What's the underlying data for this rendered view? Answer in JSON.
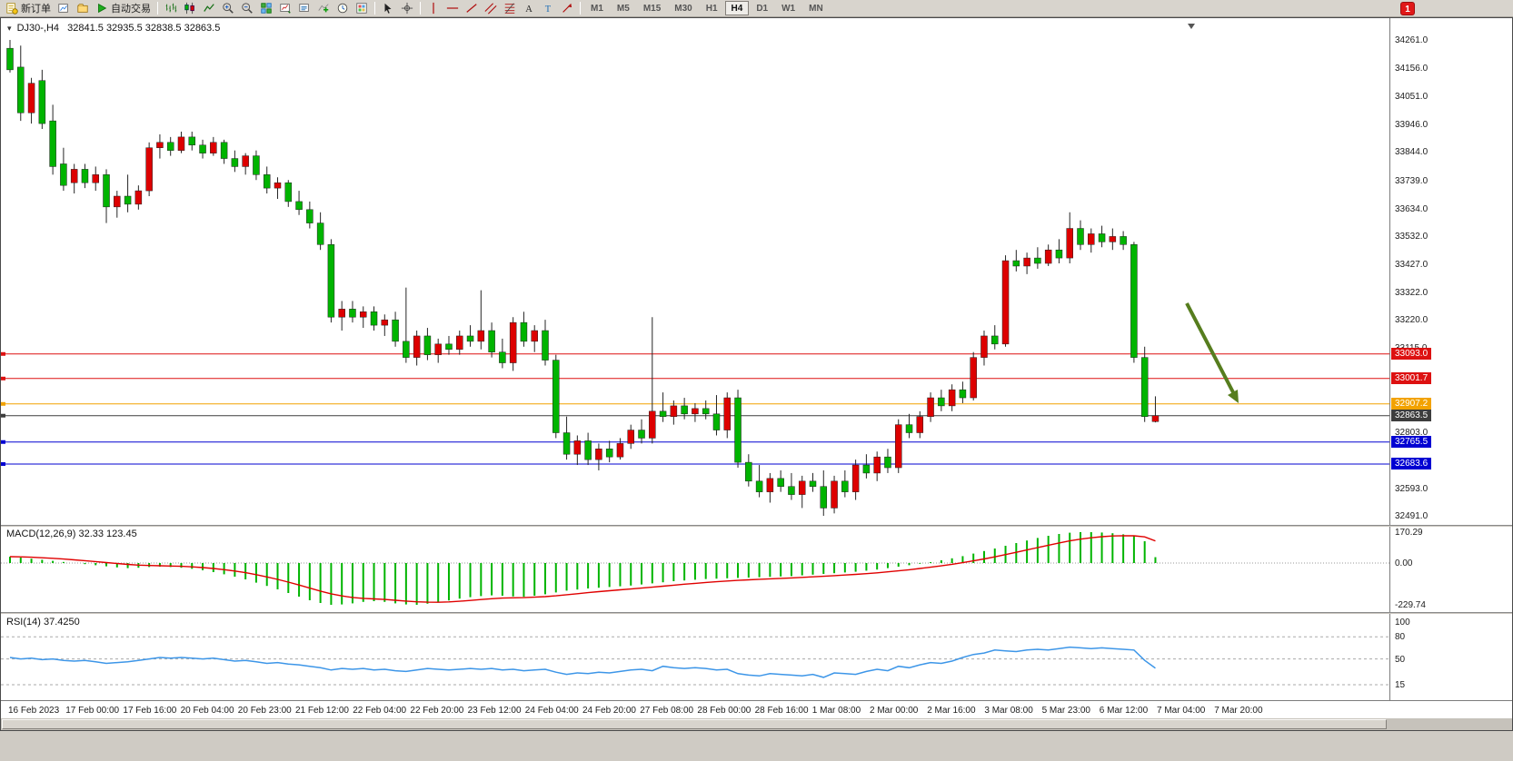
{
  "toolbar": {
    "new_order": "新订单",
    "autotrading": "自动交易",
    "badge": "1",
    "icons": [
      "new-order",
      "new-chart",
      "profiles",
      "autotrading",
      "bars-chart",
      "candlestick-chart",
      "line-chart",
      "zoom-in",
      "zoom-out",
      "tile-windows",
      "chart-window",
      "chart-list",
      "indicators",
      "periods",
      "templates",
      "cursor",
      "crosshair",
      "vertical-line",
      "horizontal-line",
      "trendline",
      "equidistant-channel",
      "fibonacci",
      "text",
      "label",
      "arrows"
    ],
    "timeframes": [
      "M1",
      "M5",
      "M15",
      "M30",
      "H1",
      "H4",
      "D1",
      "W1",
      "MN"
    ],
    "active_timeframe": "H4"
  },
  "chart": {
    "symbol_period": "DJ30-,H4",
    "ohlc_text": "32841.5 32935.5 32838.5 32863.5"
  },
  "chart_data": {
    "type": "candlestick",
    "symbol": "DJ30-",
    "period": "H4",
    "last_candle": {
      "open": 32841.5,
      "high": 32935.5,
      "low": 32838.5,
      "close": 32863.5
    },
    "up_color": "#dd0000",
    "down_color": "#00b400",
    "wick_color": "#262626",
    "ylim": [
      32470,
      34320
    ],
    "price_axis_ticks": [
      "34261.0",
      "34156.0",
      "34051.0",
      "33946.0",
      "33844.0",
      "33739.0",
      "33634.0",
      "33532.0",
      "33427.0",
      "33322.0",
      "33220.0",
      "33115.0",
      "32803.0",
      "32593.0",
      "32491.0"
    ],
    "price_lines": [
      {
        "value": "33093.0",
        "price": 33093.0,
        "color": "#dd1111",
        "kind": "resistance"
      },
      {
        "value": "33001.7",
        "price": 33001.7,
        "color": "#dd1111",
        "kind": "resistance"
      },
      {
        "value": "32907.2",
        "price": 32907.2,
        "color": "#f2a200",
        "kind": "level"
      },
      {
        "value": "32863.5",
        "price": 32863.5,
        "color": "#3d3d3d",
        "kind": "current-price"
      },
      {
        "value": "32765.5",
        "price": 32765.5,
        "color": "#0000d2",
        "kind": "support"
      },
      {
        "value": "32683.6",
        "price": 32683.6,
        "color": "#0000d2",
        "kind": "support"
      }
    ],
    "time_labels": [
      "16 Feb 2023",
      "17 Feb 00:00",
      "17 Feb 16:00",
      "20 Feb 04:00",
      "20 Feb 23:00",
      "21 Feb 12:00",
      "22 Feb 04:00",
      "22 Feb 20:00",
      "23 Feb 12:00",
      "24 Feb 04:00",
      "24 Feb 20:00",
      "27 Feb 08:00",
      "28 Feb 00:00",
      "28 Feb 16:00",
      "1 Mar 08:00",
      "2 Mar 00:00",
      "2 Mar 16:00",
      "3 Mar 08:00",
      "5 Mar 23:00",
      "6 Mar 12:00",
      "7 Mar 04:00",
      "7 Mar 20:00"
    ],
    "annotations": [
      {
        "type": "arrow",
        "from": [
          1305,
          314
        ],
        "to": [
          1362,
          424
        ],
        "color": "#567d1e",
        "meaning": "sell-pressure-arrow"
      }
    ],
    "candles": [
      [
        34230,
        34261,
        34140,
        34150
      ],
      [
        34160,
        34240,
        33960,
        33990
      ],
      [
        33990,
        34120,
        33950,
        34100
      ],
      [
        34110,
        34150,
        33930,
        33950
      ],
      [
        33960,
        34020,
        33760,
        33790
      ],
      [
        33800,
        33860,
        33700,
        33720
      ],
      [
        33730,
        33800,
        33690,
        33780
      ],
      [
        33780,
        33800,
        33710,
        33730
      ],
      [
        33730,
        33790,
        33700,
        33760
      ],
      [
        33760,
        33780,
        33580,
        33640
      ],
      [
        33640,
        33700,
        33600,
        33680
      ],
      [
        33680,
        33760,
        33620,
        33650
      ],
      [
        33650,
        33720,
        33630,
        33700
      ],
      [
        33700,
        33880,
        33680,
        33860
      ],
      [
        33860,
        33910,
        33820,
        33880
      ],
      [
        33880,
        33900,
        33830,
        33850
      ],
      [
        33850,
        33920,
        33840,
        33900
      ],
      [
        33900,
        33920,
        33850,
        33870
      ],
      [
        33870,
        33890,
        33820,
        33840
      ],
      [
        33840,
        33900,
        33830,
        33880
      ],
      [
        33880,
        33890,
        33800,
        33820
      ],
      [
        33820,
        33850,
        33770,
        33790
      ],
      [
        33790,
        33840,
        33760,
        33830
      ],
      [
        33830,
        33850,
        33740,
        33760
      ],
      [
        33760,
        33790,
        33690,
        33710
      ],
      [
        33710,
        33750,
        33670,
        33730
      ],
      [
        33730,
        33740,
        33640,
        33660
      ],
      [
        33660,
        33700,
        33610,
        33630
      ],
      [
        33630,
        33660,
        33560,
        33580
      ],
      [
        33580,
        33620,
        33480,
        33500
      ],
      [
        33500,
        33520,
        33210,
        33230
      ],
      [
        33230,
        33290,
        33180,
        33260
      ],
      [
        33260,
        33290,
        33210,
        33230
      ],
      [
        33230,
        33270,
        33190,
        33250
      ],
      [
        33250,
        33270,
        33180,
        33200
      ],
      [
        33200,
        33240,
        33160,
        33220
      ],
      [
        33220,
        33250,
        33120,
        33140
      ],
      [
        33140,
        33340,
        33060,
        33080
      ],
      [
        33080,
        33180,
        33050,
        33160
      ],
      [
        33160,
        33190,
        33070,
        33090
      ],
      [
        33090,
        33150,
        33060,
        33130
      ],
      [
        33130,
        33160,
        33090,
        33110
      ],
      [
        33110,
        33180,
        33090,
        33160
      ],
      [
        33160,
        33200,
        33120,
        33140
      ],
      [
        33140,
        33330,
        33110,
        33180
      ],
      [
        33180,
        33210,
        33080,
        33100
      ],
      [
        33100,
        33150,
        33040,
        33060
      ],
      [
        33060,
        33230,
        33030,
        33210
      ],
      [
        33210,
        33250,
        33120,
        33140
      ],
      [
        33140,
        33200,
        33100,
        33180
      ],
      [
        33180,
        33220,
        33050,
        33070
      ],
      [
        33070,
        33090,
        32780,
        32800
      ],
      [
        32800,
        32860,
        32700,
        32720
      ],
      [
        32720,
        32790,
        32680,
        32770
      ],
      [
        32770,
        32800,
        32680,
        32700
      ],
      [
        32700,
        32760,
        32660,
        32740
      ],
      [
        32740,
        32770,
        32690,
        32710
      ],
      [
        32710,
        32780,
        32700,
        32760
      ],
      [
        32760,
        32830,
        32740,
        32810
      ],
      [
        32810,
        32850,
        32760,
        32780
      ],
      [
        32780,
        33230,
        32760,
        32880
      ],
      [
        32880,
        32950,
        32840,
        32860
      ],
      [
        32860,
        32920,
        32830,
        32900
      ],
      [
        32900,
        32930,
        32850,
        32870
      ],
      [
        32870,
        32910,
        32840,
        32890
      ],
      [
        32890,
        32920,
        32850,
        32870
      ],
      [
        32870,
        32940,
        32790,
        32810
      ],
      [
        32810,
        32950,
        32780,
        32930
      ],
      [
        32930,
        32960,
        32670,
        32690
      ],
      [
        32690,
        32720,
        32600,
        32620
      ],
      [
        32620,
        32680,
        32560,
        32580
      ],
      [
        32580,
        32650,
        32540,
        32630
      ],
      [
        32630,
        32660,
        32580,
        32600
      ],
      [
        32600,
        32650,
        32550,
        32570
      ],
      [
        32570,
        32640,
        32520,
        32620
      ],
      [
        32620,
        32650,
        32580,
        32600
      ],
      [
        32600,
        32660,
        32491,
        32520
      ],
      [
        32520,
        32640,
        32500,
        32620
      ],
      [
        32620,
        32660,
        32560,
        32580
      ],
      [
        32580,
        32700,
        32550,
        32680
      ],
      [
        32680,
        32720,
        32630,
        32650
      ],
      [
        32650,
        32730,
        32620,
        32710
      ],
      [
        32710,
        32740,
        32650,
        32670
      ],
      [
        32670,
        32850,
        32650,
        32830
      ],
      [
        32830,
        32870,
        32780,
        32800
      ],
      [
        32800,
        32880,
        32780,
        32860
      ],
      [
        32860,
        32950,
        32840,
        32930
      ],
      [
        32930,
        32960,
        32880,
        32900
      ],
      [
        32900,
        32980,
        32880,
        32960
      ],
      [
        32960,
        32990,
        32910,
        32930
      ],
      [
        32930,
        33100,
        32920,
        33080
      ],
      [
        33080,
        33180,
        33050,
        33160
      ],
      [
        33160,
        33200,
        33110,
        33130
      ],
      [
        33130,
        33460,
        33120,
        33440
      ],
      [
        33440,
        33480,
        33400,
        33420
      ],
      [
        33420,
        33470,
        33390,
        33450
      ],
      [
        33450,
        33490,
        33410,
        33430
      ],
      [
        33430,
        33500,
        33420,
        33480
      ],
      [
        33480,
        33520,
        33430,
        33450
      ],
      [
        33450,
        33620,
        33430,
        33560
      ],
      [
        33560,
        33590,
        33480,
        33500
      ],
      [
        33500,
        33560,
        33470,
        33540
      ],
      [
        33540,
        33570,
        33490,
        33510
      ],
      [
        33510,
        33560,
        33480,
        33530
      ],
      [
        33530,
        33550,
        33480,
        33500
      ],
      [
        33500,
        33510,
        33060,
        33080
      ],
      [
        33080,
        33120,
        32840,
        32860
      ],
      [
        32841.5,
        32935.5,
        32838.5,
        32863.5
      ]
    ],
    "indicators": [
      {
        "name": "MACD",
        "label": "MACD(12,26,9) 32.33 123.45",
        "main_value": 32.33,
        "signal_value": 123.45,
        "axis_ticks": [
          170.29,
          0.0,
          -229.74
        ],
        "axis_tick_labels": [
          "170.29",
          "0.00",
          "-229.74"
        ],
        "histogram_color": "#00b400",
        "signal_color": "#e00000",
        "histogram": [
          35,
          30,
          24,
          18,
          12,
          6,
          0,
          -6,
          -12,
          -18,
          -24,
          -28,
          -26,
          -22,
          -20,
          -22,
          -26,
          -32,
          -40,
          -50,
          -62,
          -75,
          -90,
          -108,
          -126,
          -145,
          -165,
          -185,
          -205,
          -220,
          -230,
          -228,
          -222,
          -214,
          -210,
          -214,
          -222,
          -228,
          -230,
          -224,
          -216,
          -206,
          -196,
          -188,
          -182,
          -178,
          -180,
          -184,
          -186,
          -180,
          -172,
          -162,
          -152,
          -146,
          -140,
          -136,
          -132,
          -128,
          -124,
          -118,
          -112,
          -106,
          -100,
          -96,
          -92,
          -88,
          -86,
          -84,
          -82,
          -80,
          -78,
          -76,
          -74,
          -72,
          -68,
          -64,
          -60,
          -56,
          -52,
          -48,
          -42,
          -36,
          -28,
          -20,
          -12,
          -4,
          5,
          15,
          26,
          38,
          52,
          66,
          80,
          95,
          110,
          124,
          138,
          150,
          160,
          167,
          170,
          170,
          168,
          164,
          158,
          148,
          120,
          32.33
        ]
      },
      {
        "name": "RSI",
        "label": "RSI(14) 37.4250",
        "value": 37.425,
        "axis_ticks": [
          100,
          80,
          50,
          15
        ],
        "axis_tick_labels": [
          "100",
          "80",
          "50",
          "15"
        ],
        "levels": [
          80,
          50,
          15
        ],
        "line_color": "#3d96e8",
        "values": [
          52,
          50,
          51,
          49,
          50,
          48,
          47,
          48,
          46,
          44,
          45,
          46,
          48,
          50,
          52,
          51,
          52,
          51,
          50,
          51,
          49,
          47,
          48,
          46,
          44,
          45,
          43,
          42,
          40,
          38,
          35,
          37,
          36,
          37,
          35,
          36,
          34,
          33,
          35,
          37,
          36,
          35,
          36,
          37,
          36,
          37,
          35,
          36,
          34,
          35,
          36,
          32,
          29,
          31,
          30,
          32,
          31,
          33,
          35,
          36,
          34,
          40,
          38,
          37,
          38,
          37,
          35,
          36,
          30,
          28,
          27,
          30,
          29,
          28,
          27,
          29,
          25,
          31,
          30,
          29,
          33,
          36,
          34,
          40,
          38,
          42,
          45,
          44,
          47,
          52,
          56,
          58,
          62,
          61,
          60,
          62,
          63,
          62,
          64,
          66,
          65,
          64,
          65,
          64,
          63,
          62,
          48,
          37.4
        ]
      }
    ]
  }
}
